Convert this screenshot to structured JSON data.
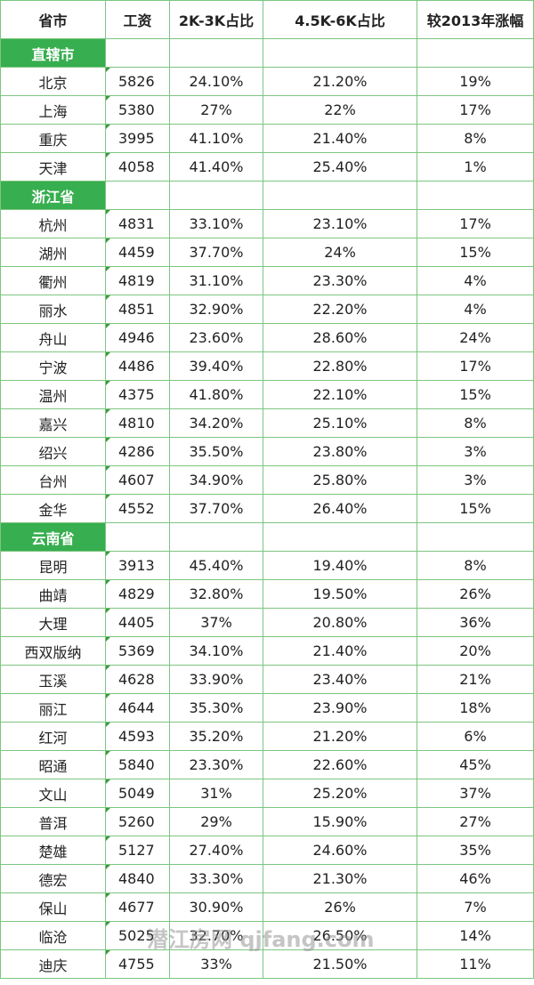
{
  "header": {
    "columns": [
      "省市",
      "工资",
      "2K-3K占比",
      "4.5K-6K占比",
      "较2013年涨幅"
    ]
  },
  "groups": [
    {
      "name": "直辖市",
      "rows": [
        [
          "北京",
          "5826",
          "24.10%",
          "21.20%",
          "19%"
        ],
        [
          "上海",
          "5380",
          "27%",
          "22%",
          "17%"
        ],
        [
          "重庆",
          "3995",
          "41.10%",
          "21.40%",
          "8%"
        ],
        [
          "天津",
          "4058",
          "41.40%",
          "25.40%",
          "1%"
        ]
      ]
    },
    {
      "name": "浙江省",
      "rows": [
        [
          "杭州",
          "4831",
          "33.10%",
          "23.10%",
          "17%"
        ],
        [
          "湖州",
          "4459",
          "37.70%",
          "24%",
          "15%"
        ],
        [
          "衢州",
          "4819",
          "31.10%",
          "23.30%",
          "4%"
        ],
        [
          "丽水",
          "4851",
          "32.90%",
          "22.20%",
          "4%"
        ],
        [
          "舟山",
          "4946",
          "23.60%",
          "28.60%",
          "24%"
        ],
        [
          "宁波",
          "4486",
          "39.40%",
          "22.80%",
          "17%"
        ],
        [
          "温州",
          "4375",
          "41.80%",
          "22.10%",
          "15%"
        ],
        [
          "嘉兴",
          "4810",
          "34.20%",
          "25.10%",
          "8%"
        ],
        [
          "绍兴",
          "4286",
          "35.50%",
          "23.80%",
          "3%"
        ],
        [
          "台州",
          "4607",
          "34.90%",
          "25.80%",
          "3%"
        ],
        [
          "金华",
          "4552",
          "37.70%",
          "26.40%",
          "15%"
        ]
      ]
    },
    {
      "name": "云南省",
      "rows": [
        [
          "昆明",
          "3913",
          "45.40%",
          "19.40%",
          "8%"
        ],
        [
          "曲靖",
          "4829",
          "32.80%",
          "19.50%",
          "26%"
        ],
        [
          "大理",
          "4405",
          "37%",
          "20.80%",
          "36%"
        ],
        [
          "西双版纳",
          "5369",
          "34.10%",
          "21.40%",
          "20%"
        ],
        [
          "玉溪",
          "4628",
          "33.90%",
          "23.40%",
          "21%"
        ],
        [
          "丽江",
          "4644",
          "35.30%",
          "23.90%",
          "18%"
        ],
        [
          "红河",
          "4593",
          "35.20%",
          "21.20%",
          "6%"
        ],
        [
          "昭通",
          "5840",
          "23.30%",
          "22.60%",
          "45%"
        ],
        [
          "文山",
          "5049",
          "31%",
          "25.20%",
          "37%"
        ],
        [
          "普洱",
          "5260",
          "29%",
          "15.90%",
          "27%"
        ],
        [
          "楚雄",
          "5127",
          "27.40%",
          "24.60%",
          "35%"
        ],
        [
          "德宏",
          "4840",
          "33.30%",
          "21.30%",
          "46%"
        ],
        [
          "保山",
          "4677",
          "30.90%",
          "26%",
          "7%"
        ],
        [
          "临沧",
          "5025",
          "32.70%",
          "26.50%",
          "14%"
        ],
        [
          "迪庆",
          "4755",
          "33%",
          "21.50%",
          "11%"
        ]
      ]
    }
  ],
  "watermark": "潜江房网 qjfang.com"
}
